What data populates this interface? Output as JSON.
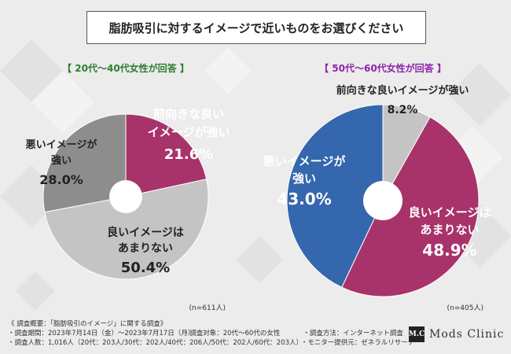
{
  "title": "脂肪吸引に対するイメージで近いものをお選びください",
  "chart_data": [
    {
      "type": "pie",
      "group_label": "【 20代～40代女性が回答 】",
      "n_label": "(n=611人)",
      "label_color": "#2e7d32",
      "slices": [
        {
          "label": "前向きな良いイメージが強い",
          "label_lines": [
            "前向きな良い",
            "イメージが強い"
          ],
          "value": 21.6,
          "value_text": "21.6%",
          "color": "#a8336a",
          "text_color": "#ffffff"
        },
        {
          "label": "良いイメージはあまりない",
          "label_lines": [
            "良いイメージは",
            "あまりない"
          ],
          "value": 50.4,
          "value_text": "50.4%",
          "color": "#c4c4c4",
          "text_color": "#222222"
        },
        {
          "label": "悪いイメージが強い",
          "label_lines": [
            "悪いイメージが",
            "強い"
          ],
          "value": 28.0,
          "value_text": "28.0%",
          "color": "#8d8d8d",
          "text_color": "#222222"
        }
      ]
    },
    {
      "type": "pie",
      "group_label": "【 50代～60代女性が回答 】",
      "n_label": "(n=405人)",
      "label_color": "#8e24aa",
      "slices": [
        {
          "label": "前向きな良いイメージが強い",
          "label_lines": [
            "前向きな良いイメージが強い"
          ],
          "value": 8.2,
          "value_text": "8.2%",
          "color": "#c4c4c4",
          "text_color": "#222222"
        },
        {
          "label": "良いイメージはあまりない",
          "label_lines": [
            "良いイメージは",
            "あまりない"
          ],
          "value": 48.9,
          "value_text": "48.9%",
          "color": "#a8336a",
          "text_color": "#ffffff"
        },
        {
          "label": "悪いイメージが強い",
          "label_lines": [
            "悪いイメージが",
            "強い"
          ],
          "value": 43.0,
          "value_text": "43.0%",
          "color": "#3467ad",
          "text_color": "#ffffff"
        }
      ]
    }
  ],
  "footer": {
    "heading": "《 調査概要：「脂肪吸引のイメージ」に関する調査》",
    "period": "・調査期間：2023年7月14日（金）～2023年7月17日（月）",
    "target": "・調査対象：20代～60代の女性",
    "method": "・調査方法：インターネット調査",
    "count": "・調査人数：1,016人（20代：203人/30代：202人/40代：206人/50代：202人/60代：203人）",
    "provider": "・モニター提供元：ゼネラルリサーチ"
  },
  "logo": {
    "mark": "M.C",
    "text": "Mods Clinic"
  }
}
